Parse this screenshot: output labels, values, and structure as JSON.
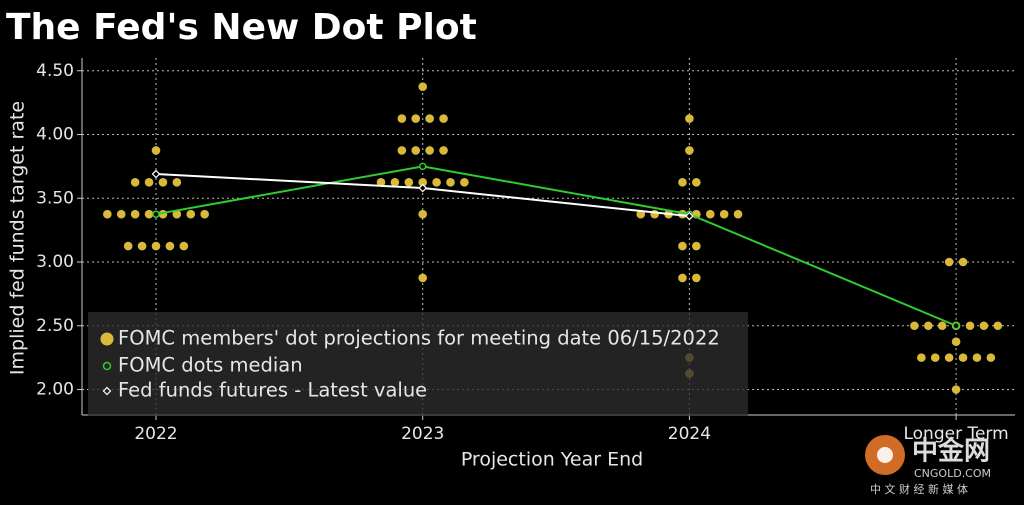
{
  "chart_data": {
    "type": "dot_plot",
    "title": "The Fed's New Dot Plot",
    "x_label": "Projection Year End",
    "y_label": "Implied fed funds target rate",
    "categories": [
      "2022",
      "2023",
      "2024",
      "Longer Term"
    ],
    "ylim": [
      1.8,
      4.6
    ],
    "yticks": [
      {
        "value": 2,
        "label": "2.00"
      },
      {
        "value": 2.5,
        "label": "2.50"
      },
      {
        "value": 3,
        "label": "3.00"
      },
      {
        "value": 3.5,
        "label": "3.50"
      },
      {
        "value": 4,
        "label": "4.00"
      },
      {
        "value": 4.5,
        "label": "4.50"
      }
    ],
    "grid": true,
    "dots": {
      "name": "FOMC members' dot projections for meeting date 06/15/2022",
      "color": "#d9b83c",
      "values": [
        [
          3.875,
          3.625,
          3.625,
          3.625,
          3.625,
          3.375,
          3.375,
          3.375,
          3.375,
          3.375,
          3.375,
          3.375,
          3.375,
          3.125,
          3.125,
          3.125,
          3.125,
          3.125
        ],
        [
          4.375,
          4.125,
          4.125,
          4.125,
          4.125,
          3.875,
          3.875,
          3.875,
          3.875,
          3.625,
          3.625,
          3.625,
          3.625,
          3.625,
          3.625,
          3.625,
          3.375,
          2.875
        ],
        [
          4.125,
          3.875,
          3.625,
          3.625,
          3.375,
          3.375,
          3.375,
          3.375,
          3.375,
          3.375,
          3.375,
          3.375,
          3.125,
          3.125,
          2.875,
          2.875,
          2.25,
          2.125
        ],
        [
          3.0,
          3.0,
          2.5,
          2.5,
          2.5,
          2.5,
          2.5,
          2.5,
          2.5,
          2.375,
          2.25,
          2.25,
          2.25,
          2.25,
          2.25,
          2.25,
          2.0
        ]
      ]
    },
    "series": [
      {
        "name": "FOMC dots median",
        "color": "#2ecc2e",
        "values": [
          3.375,
          3.75,
          3.375,
          2.5
        ]
      },
      {
        "name": "Fed funds futures - Latest value",
        "color": "#ffffff",
        "values": [
          3.69,
          3.58,
          3.36,
          null
        ]
      }
    ],
    "watermark": {
      "name": "中金网",
      "site": "CNGOLD.COM",
      "tagline": "中 文 财 经 新 媒 体"
    }
  }
}
